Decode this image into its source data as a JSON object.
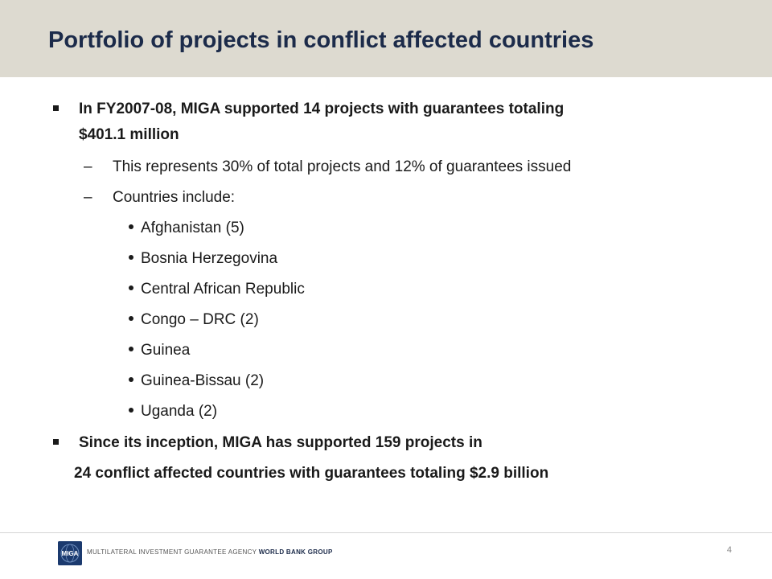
{
  "slide": {
    "title": "Portfolio of projects in conflict affected countries",
    "bullet1": "In  FY2007-08, MIGA supported 14 projects with guarantees totaling",
    "bullet1_cont": "$401.1 million",
    "sub1": "This represents 30% of total projects and 12% of guarantees issued",
    "sub2": "Countries include:",
    "dash_glyph": "–",
    "countries": [
      "Afghanistan (5)",
      "Bosnia Herzegovina",
      "Central African Republic",
      "Congo – DRC (2)",
      "Guinea",
      "Guinea-Bissau (2)",
      "Uganda (2)"
    ],
    "bullet2": "Since its inception, MIGA has supported 159 projects in",
    "bullet2_cont": "24 conflict affected countries with guarantees totaling $2.9 billion"
  },
  "footer": {
    "logo_text": "MIGA",
    "agency": "MULTILATERAL INVESTMENT GUARANTEE AGENCY",
    "group": "WORLD BANK GROUP",
    "page_number": "4"
  },
  "colors": {
    "title_band": "#dddad0",
    "title_text": "#1c2b4a",
    "logo_bg": "#1b3a6e"
  }
}
